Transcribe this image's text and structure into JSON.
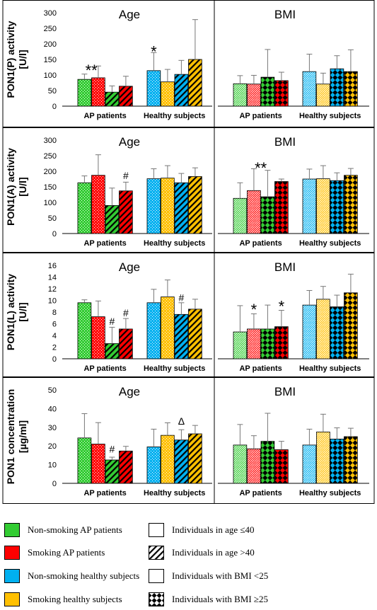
{
  "chart_data": [
    {
      "type": "bar",
      "ylabel": [
        "PON1(P) activity",
        "[U/l]"
      ],
      "ylim": [
        0,
        300
      ],
      "yticks": [
        0,
        50,
        100,
        150,
        200,
        250,
        300
      ],
      "panels": [
        {
          "title": "Age",
          "groups": [
            {
              "label": "AP patients",
              "bars": [
                {
                  "fill": "#33cc33",
                  "pattern": "dots",
                  "value": 86,
                  "err": 17
                },
                {
                  "fill": "#ff0000",
                  "pattern": "dots",
                  "value": 91,
                  "err": 38
                },
                {
                  "fill": "#33cc33",
                  "pattern": "diag",
                  "value": 45,
                  "err": 20
                },
                {
                  "fill": "#ff0000",
                  "pattern": "diag",
                  "value": 64,
                  "err": 32
                }
              ]
            },
            {
              "label": "Healthy subjects",
              "bars": [
                {
                  "fill": "#00b0f0",
                  "pattern": "dots",
                  "value": 114,
                  "err": 58
                },
                {
                  "fill": "#ffc000",
                  "pattern": "dots",
                  "value": 78,
                  "err": 40
                },
                {
                  "fill": "#00b0f0",
                  "pattern": "diag",
                  "value": 102,
                  "err": 45
                },
                {
                  "fill": "#ffc000",
                  "pattern": "diag",
                  "value": 150,
                  "err": 128
                }
              ]
            }
          ],
          "annotations": [
            {
              "text": "**",
              "group": 0,
              "bar": 0.5,
              "value": 125
            },
            {
              "text": "*",
              "group": 1,
              "bar": 0,
              "value": 185
            }
          ]
        },
        {
          "title": "BMI",
          "groups": [
            {
              "label": "AP patients",
              "bars": [
                {
                  "fill": "#33cc33",
                  "pattern": "wave",
                  "value": 72,
                  "err": 26
                },
                {
                  "fill": "#ff0000",
                  "pattern": "wave",
                  "value": 71,
                  "err": 28
                },
                {
                  "fill": "#33cc33",
                  "pattern": "check",
                  "value": 93,
                  "err": 89
                },
                {
                  "fill": "#ff0000",
                  "pattern": "check",
                  "value": 82,
                  "err": 27
                }
              ]
            },
            {
              "label": "Healthy subjects",
              "bars": [
                {
                  "fill": "#00b0f0",
                  "pattern": "wave",
                  "value": 111,
                  "err": 56
                },
                {
                  "fill": "#ffc000",
                  "pattern": "wave",
                  "value": 71,
                  "err": 35
                },
                {
                  "fill": "#00b0f0",
                  "pattern": "check",
                  "value": 120,
                  "err": 42
                },
                {
                  "fill": "#ffc000",
                  "pattern": "check",
                  "value": 111,
                  "err": 70
                }
              ]
            }
          ],
          "annotations": []
        }
      ]
    },
    {
      "type": "bar",
      "ylabel": [
        "PON1(A) activity",
        "[U/l]"
      ],
      "ylim": [
        0,
        300
      ],
      "yticks": [
        0,
        50,
        100,
        150,
        200,
        250,
        300
      ],
      "panels": [
        {
          "title": "Age",
          "groups": [
            {
              "label": "AP patients",
              "bars": [
                {
                  "fill": "#33cc33",
                  "pattern": "dots",
                  "value": 163,
                  "err": 22
                },
                {
                  "fill": "#ff0000",
                  "pattern": "dots",
                  "value": 187,
                  "err": 66
                },
                {
                  "fill": "#33cc33",
                  "pattern": "diag",
                  "value": 90,
                  "err": 56
                },
                {
                  "fill": "#ff0000",
                  "pattern": "diag",
                  "value": 137,
                  "err": 28
                }
              ]
            },
            {
              "label": "Healthy subjects",
              "bars": [
                {
                  "fill": "#00b0f0",
                  "pattern": "dots",
                  "value": 176,
                  "err": 32
                },
                {
                  "fill": "#ffc000",
                  "pattern": "dots",
                  "value": 178,
                  "err": 40
                },
                {
                  "fill": "#00b0f0",
                  "pattern": "diag",
                  "value": 163,
                  "err": 30
                },
                {
                  "fill": "#ffc000",
                  "pattern": "diag",
                  "value": 183,
                  "err": 28
                }
              ]
            }
          ],
          "annotations": [
            {
              "text": "#",
              "group": 0,
              "bar": 3,
              "value": 175
            }
          ]
        },
        {
          "title": "BMI",
          "groups": [
            {
              "label": "AP patients",
              "bars": [
                {
                  "fill": "#33cc33",
                  "pattern": "wave",
                  "value": 113,
                  "err": 50
                },
                {
                  "fill": "#ff0000",
                  "pattern": "wave",
                  "value": 138,
                  "err": 70
                },
                {
                  "fill": "#33cc33",
                  "pattern": "check",
                  "value": 118,
                  "err": 85
                },
                {
                  "fill": "#ff0000",
                  "pattern": "check",
                  "value": 167,
                  "err": 8
                }
              ]
            },
            {
              "label": "Healthy subjects",
              "bars": [
                {
                  "fill": "#00b0f0",
                  "pattern": "wave",
                  "value": 175,
                  "err": 32
                },
                {
                  "fill": "#ffc000",
                  "pattern": "wave",
                  "value": 176,
                  "err": 42
                },
                {
                  "fill": "#00b0f0",
                  "pattern": "check",
                  "value": 170,
                  "err": 25
                },
                {
                  "fill": "#ffc000",
                  "pattern": "check",
                  "value": 187,
                  "err": 22
                }
              ]
            }
          ],
          "annotations": [
            {
              "text": "**",
              "group": 0,
              "bar": 1.5,
              "value": 220
            }
          ]
        }
      ]
    },
    {
      "type": "bar",
      "ylabel": [
        "PON1(L) activity",
        "[U/l]"
      ],
      "ylim": [
        0,
        16
      ],
      "yticks": [
        0,
        2,
        4,
        6,
        8,
        10,
        12,
        14,
        16
      ],
      "panels": [
        {
          "title": "Age",
          "groups": [
            {
              "label": "AP patients",
              "bars": [
                {
                  "fill": "#33cc33",
                  "pattern": "dots",
                  "value": 9.6,
                  "err": 0.5
                },
                {
                  "fill": "#ff0000",
                  "pattern": "dots",
                  "value": 7.2,
                  "err": 2.7
                },
                {
                  "fill": "#33cc33",
                  "pattern": "diag",
                  "value": 2.6,
                  "err": 2.8
                },
                {
                  "fill": "#ff0000",
                  "pattern": "diag",
                  "value": 5.1,
                  "err": 1.8
                }
              ]
            },
            {
              "label": "Healthy subjects",
              "bars": [
                {
                  "fill": "#00b0f0",
                  "pattern": "dots",
                  "value": 9.6,
                  "err": 2.3
                },
                {
                  "fill": "#ffc000",
                  "pattern": "dots",
                  "value": 10.6,
                  "err": 2.9
                },
                {
                  "fill": "#00b0f0",
                  "pattern": "diag",
                  "value": 7.6,
                  "err": 2.0
                },
                {
                  "fill": "#ffc000",
                  "pattern": "diag",
                  "value": 8.5,
                  "err": 1.7
                }
              ]
            }
          ],
          "annotations": [
            {
              "text": "#",
              "group": 0,
              "bar": 2,
              "value": 5.8
            },
            {
              "text": "#",
              "group": 0,
              "bar": 3,
              "value": 7.3
            },
            {
              "text": "#",
              "group": 1,
              "bar": 2,
              "value": 9.9
            }
          ]
        },
        {
          "title": "BMI",
          "groups": [
            {
              "label": "AP patients",
              "bars": [
                {
                  "fill": "#33cc33",
                  "pattern": "wave",
                  "value": 4.6,
                  "err": 4.5
                },
                {
                  "fill": "#ff0000",
                  "pattern": "wave",
                  "value": 5.1,
                  "err": 2.6
                },
                {
                  "fill": "#33cc33",
                  "pattern": "check",
                  "value": 5.1,
                  "err": 4.1
                },
                {
                  "fill": "#ff0000",
                  "pattern": "check",
                  "value": 5.5,
                  "err": 2.8
                }
              ]
            },
            {
              "label": "Healthy subjects",
              "bars": [
                {
                  "fill": "#00b0f0",
                  "pattern": "wave",
                  "value": 9.2,
                  "err": 2.5
                },
                {
                  "fill": "#ffc000",
                  "pattern": "wave",
                  "value": 10.2,
                  "err": 2.2
                },
                {
                  "fill": "#00b0f0",
                  "pattern": "check",
                  "value": 8.9,
                  "err": 2.0
                },
                {
                  "fill": "#ffc000",
                  "pattern": "check",
                  "value": 11.3,
                  "err": 3.2
                }
              ]
            }
          ],
          "annotations": [
            {
              "text": "*",
              "group": 0,
              "bar": 1,
              "value": 9.0
            },
            {
              "text": "*",
              "group": 0,
              "bar": 3,
              "value": 9.5
            }
          ]
        }
      ]
    },
    {
      "type": "bar",
      "ylabel": [
        "PON1 concentration",
        "[µg/ml]"
      ],
      "ylim": [
        0,
        50
      ],
      "yticks": [
        0,
        10,
        20,
        30,
        40,
        50
      ],
      "panels": [
        {
          "title": "Age",
          "groups": [
            {
              "label": "AP patients",
              "bars": [
                {
                  "fill": "#33cc33",
                  "pattern": "dots",
                  "value": 24.3,
                  "err": 13
                },
                {
                  "fill": "#ff0000",
                  "pattern": "dots",
                  "value": 21,
                  "err": 11.5
                },
                {
                  "fill": "#33cc33",
                  "pattern": "diag",
                  "value": 12.5,
                  "err": 1.5
                },
                {
                  "fill": "#ff0000",
                  "pattern": "diag",
                  "value": 17.3,
                  "err": 2.5
                }
              ]
            },
            {
              "label": "Healthy subjects",
              "bars": [
                {
                  "fill": "#00b0f0",
                  "pattern": "dots",
                  "value": 19.5,
                  "err": 9.5
                },
                {
                  "fill": "#ffc000",
                  "pattern": "dots",
                  "value": 25.7,
                  "err": 6.7
                },
                {
                  "fill": "#00b0f0",
                  "pattern": "diag",
                  "value": 23.2,
                  "err": 5.5
                },
                {
                  "fill": "#ffc000",
                  "pattern": "diag",
                  "value": 26.5,
                  "err": 4.5
                }
              ]
            }
          ],
          "annotations": [
            {
              "text": "#",
              "group": 0,
              "bar": 2,
              "value": 16.5
            },
            {
              "text": "Δ",
              "group": 1,
              "bar": 2,
              "value": 31.5
            }
          ]
        },
        {
          "title": "BMI",
          "groups": [
            {
              "label": "AP patients",
              "bars": [
                {
                  "fill": "#33cc33",
                  "pattern": "wave",
                  "value": 20.5,
                  "err": 11
                },
                {
                  "fill": "#ff0000",
                  "pattern": "wave",
                  "value": 18.5,
                  "err": 7
                },
                {
                  "fill": "#33cc33",
                  "pattern": "check",
                  "value": 22.5,
                  "err": 15
                },
                {
                  "fill": "#ff0000",
                  "pattern": "check",
                  "value": 18,
                  "err": 4.5
                }
              ]
            },
            {
              "label": "Healthy subjects",
              "bars": [
                {
                  "fill": "#00b0f0",
                  "pattern": "wave",
                  "value": 20.5,
                  "err": 8.5
                },
                {
                  "fill": "#ffc000",
                  "pattern": "wave",
                  "value": 27.5,
                  "err": 9.5
                },
                {
                  "fill": "#00b0f0",
                  "pattern": "check",
                  "value": 23.7,
                  "err": 6
                },
                {
                  "fill": "#ffc000",
                  "pattern": "check",
                  "value": 25,
                  "err": 4.5
                }
              ]
            }
          ],
          "annotations": []
        }
      ]
    }
  ],
  "legend": {
    "items": [
      {
        "label": "Non-smoking AP patients",
        "fill": "#33cc33",
        "pattern": "solid"
      },
      {
        "label": "Smoking AP patients",
        "fill": "#ff0000",
        "pattern": "solid"
      },
      {
        "label": "Non-smoking healthy subjects",
        "fill": "#00b0f0",
        "pattern": "solid"
      },
      {
        "label": "Smoking healthy subjects",
        "fill": "#ffc000",
        "pattern": "solid"
      },
      {
        "label": "Individuals in age ≤40",
        "fill": "#ffffff",
        "pattern": "dots"
      },
      {
        "label": "Individuals in age >40",
        "fill": "#ffffff",
        "pattern": "diag"
      },
      {
        "label": "Individuals with BMI <25",
        "fill": "#ffffff",
        "pattern": "wave"
      },
      {
        "label": "Individuals with BMI ≥25",
        "fill": "#ffffff",
        "pattern": "check"
      }
    ]
  }
}
